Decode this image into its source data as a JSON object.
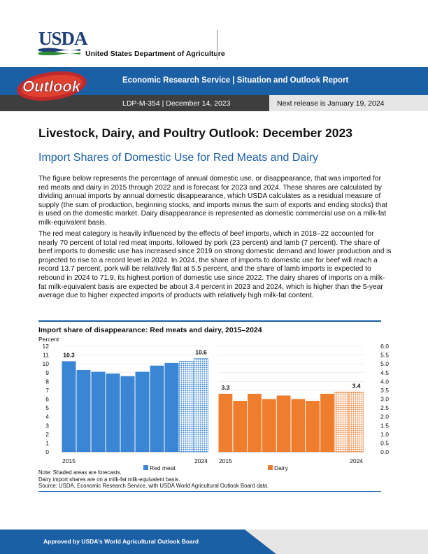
{
  "header": {
    "logo_text": "USDA",
    "department": "United States Department of Agriculture",
    "outlook_logo_text": "Outlook",
    "title": "Economic Research Service  |  Situation and Outlook Report",
    "report_id": "LDP-M-354  |  December 14, 2023",
    "next_release": "Next release is January 19, 2024"
  },
  "colors": {
    "brand_blue": "#1b5fa5",
    "red_meat": "#3a86d4",
    "dairy": "#ee7d2e"
  },
  "report_title": "Livestock, Dairy, and Poultry Outlook: December 2023",
  "section_title": "Import Shares of Domestic Use for Red Meats and Dairy",
  "paragraphs": [
    "The figure below represents the percentage of annual domestic use, or disappearance, that was imported for red meats and dairy in 2015 through 2022 and is forecast for 2023 and 2024. These shares are calculated by dividing annual imports by annual domestic disappearance, which USDA calculates as a residual measure of supply (the sum of production, beginning stocks, and imports minus the sum of exports and ending stocks) that is used on the domestic market. Dairy disappearance is represented as domestic commercial use on a milk-fat milk-equivalent basis.",
    "The red meat category is heavily influenced by the effects of beef imports, which in 2018–22 accounted for nearly 70 percent of total red meat imports, followed by pork (23 percent) and lamb (7 percent). The share of beef imports to domestic use has increased since 2019 on strong domestic demand and lower production and is projected to rise to a record level in 2024. In 2024, the share of imports to domestic use for beef will reach a record 13.7 percent, pork will be relatively flat at 5.5 percent, and the share of lamb imports is expected to rebound in 2024 to 71.9, its highest portion of domestic use since 2022. The dairy shares of imports on a milk-fat milk-equivalent basis are expected be about 3.4 percent in 2023 and 2024, which is higher than the 5-year average due to higher expected imports of products with relatively high milk-fat content."
  ],
  "chart_data": {
    "type": "bar",
    "title": "Import share of disappearance: Red meats and dairy, 2015–2024",
    "ylabel": "Percent",
    "categories": [
      "2015",
      "2016",
      "2017",
      "2018",
      "2019",
      "2020",
      "2021",
      "2022",
      "2023",
      "2024"
    ],
    "x_tick_labels": [
      "2015",
      "2024"
    ],
    "forecast_categories": [
      "2023",
      "2024"
    ],
    "series": [
      {
        "name": "Red meat",
        "axis": "left",
        "ylim": [
          0,
          12
        ],
        "yticks": [
          "0",
          "1",
          "2",
          "3",
          "4",
          "5",
          "6",
          "7",
          "8",
          "9",
          "10",
          "11",
          "12"
        ],
        "values": [
          10.3,
          9.3,
          9.1,
          8.9,
          8.6,
          9.1,
          9.8,
          10.1,
          10.3,
          10.6
        ],
        "data_labels": [
          {
            "index": 0,
            "text": "10.3"
          },
          {
            "index": 9,
            "text": "10.6"
          }
        ]
      },
      {
        "name": "Dairy",
        "axis": "right",
        "ylim": [
          0,
          6
        ],
        "yticks": [
          "0.0",
          "0.5",
          "1.0",
          "1.5",
          "2.0",
          "2.5",
          "3.0",
          "3.5",
          "4.0",
          "4.5",
          "5.0",
          "5.5",
          "6.0"
        ],
        "values": [
          3.3,
          2.9,
          3.3,
          3.0,
          3.2,
          3.0,
          2.9,
          3.3,
          3.4,
          3.4
        ],
        "data_labels": [
          {
            "index": 0,
            "text": "3.3"
          },
          {
            "index": 9,
            "text": "3.4"
          }
        ]
      }
    ],
    "notes": [
      "Note: Shaded areas are forecasts.",
      "Dairy import shares are on a milk-fat milk-equivalent basis.",
      "Source: USDA, Economic Research Service, with USDA World Agricultural Outlook Board data."
    ]
  },
  "footer": {
    "text": "Approved by USDA’s World Agricultural Outlook Board"
  }
}
